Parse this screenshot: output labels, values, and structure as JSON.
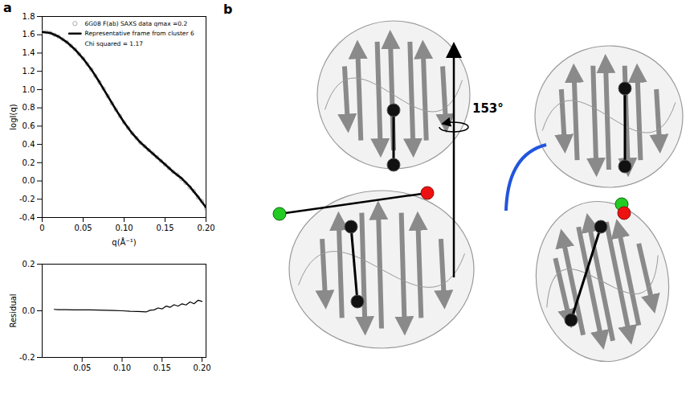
{
  "chart_data": [
    {
      "type": "line",
      "panel_label": "a",
      "x_label": "q(Å⁻¹)",
      "y_label": "logI(q)",
      "xlim": [
        0,
        0.2
      ],
      "xticks": [
        0,
        0.05,
        {
          "value": 0.1,
          "label": "0.10"
        },
        0.15,
        {
          "value": 0.2,
          "label": "0.20"
        }
      ],
      "ylim": [
        -0.4,
        1.8
      ],
      "yticks": [
        -0.4,
        -0.2,
        {
          "value": 0,
          "label": "0.0"
        },
        0.2,
        0.4,
        0.6,
        0.8,
        {
          "value": 1,
          "label": "1.0"
        },
        1.2,
        1.4,
        1.6,
        1.8
      ],
      "legend": "upper right",
      "annotations": [
        "Chi squared = 1.17"
      ],
      "series": [
        {
          "name": "6G08 F(ab) SAXS data qmax =0.2",
          "type": "scatter",
          "marker": "circle",
          "color": "#aaaaaa",
          "x": [
            0,
            0.005,
            0.01,
            0.015,
            0.02,
            0.025,
            0.03,
            0.035,
            0.04,
            0.045,
            0.05,
            0.055,
            0.06,
            0.065,
            0.07,
            0.075,
            0.08,
            0.085,
            0.09,
            0.095,
            0.1,
            0.105,
            0.11,
            0.115,
            0.12,
            0.125,
            0.13,
            0.135,
            0.14,
            0.145,
            0.15,
            0.155,
            0.16,
            0.165,
            0.17,
            0.175,
            0.18,
            0.185,
            0.19,
            0.195,
            0.2
          ],
          "values": [
            1.63,
            1.63,
            1.62,
            1.6,
            1.58,
            1.55,
            1.52,
            1.48,
            1.44,
            1.39,
            1.34,
            1.28,
            1.22,
            1.15,
            1.08,
            1.01,
            0.93,
            0.85,
            0.78,
            0.71,
            0.64,
            0.58,
            0.52,
            0.47,
            0.42,
            0.38,
            0.34,
            0.3,
            0.26,
            0.22,
            0.18,
            0.14,
            0.1,
            0.07,
            0.02,
            -0.02,
            -0.07,
            -0.11,
            -0.18,
            -0.22,
            -0.3
          ]
        },
        {
          "name": "Representative frame from cluster 6",
          "type": "line",
          "line_style": "solid",
          "color": "#000000",
          "x": [
            0,
            0.01,
            0.02,
            0.03,
            0.04,
            0.05,
            0.06,
            0.07,
            0.08,
            0.09,
            0.1,
            0.11,
            0.12,
            0.13,
            0.14,
            0.15,
            0.16,
            0.17,
            0.18,
            0.19,
            0.2
          ],
          "values": [
            1.63,
            1.62,
            1.58,
            1.52,
            1.44,
            1.34,
            1.22,
            1.08,
            0.93,
            0.78,
            0.64,
            0.52,
            0.42,
            0.34,
            0.26,
            0.18,
            0.1,
            0.03,
            -0.06,
            -0.17,
            -0.29
          ]
        }
      ]
    },
    {
      "type": "line",
      "y_label": "Residual",
      "xlim": [
        0,
        0.205
      ],
      "xticks": [
        0.05,
        {
          "value": 0.1,
          "label": "0.10"
        },
        0.15,
        {
          "value": 0.2,
          "label": "0.20"
        }
      ],
      "ylim": [
        -0.2,
        0.2
      ],
      "yticks": [
        -0.2,
        {
          "value": 0,
          "label": "0.0"
        },
        0.2
      ],
      "series": [
        {
          "type": "line",
          "line_style": "solid",
          "color": "#000000",
          "x": [
            0.015,
            0.02,
            0.03,
            0.04,
            0.05,
            0.06,
            0.07,
            0.08,
            0.09,
            0.1,
            0.11,
            0.12,
            0.13,
            0.135,
            0.14,
            0.145,
            0.15,
            0.155,
            0.16,
            0.165,
            0.17,
            0.175,
            0.18,
            0.185,
            0.19,
            0.195,
            0.2
          ],
          "values": [
            0.006,
            0.005,
            0.005,
            0.004,
            0.004,
            0.004,
            0.003,
            0.002,
            0.001,
            0,
            -0.002,
            -0.003,
            -0.005,
            0.002,
            0.004,
            0.012,
            0.008,
            0.02,
            0.015,
            0.026,
            0.02,
            0.03,
            0.025,
            0.038,
            0.03,
            0.045,
            0.04
          ]
        }
      ]
    }
  ],
  "diagram": {
    "panel_label": "b",
    "angle_label": "153°"
  }
}
